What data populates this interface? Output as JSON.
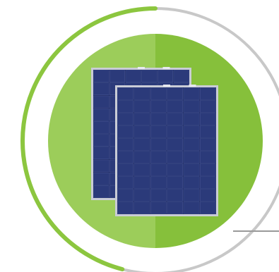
{
  "graphic": {
    "subject": "solar-panels-icon",
    "progress_fraction": 0.5,
    "colors": {
      "ring_track": "#c8c8c8",
      "ring_progress": "#8cc63f",
      "circle_left": "#9ccd5a",
      "circle_right": "#86c03b",
      "panel_cell": "#2b3a7a",
      "panel_cell_dark": "#1f2c66",
      "panel_grid": "#5a6aa8",
      "panel_frame": "#c9ccd6",
      "connector_line": "#999999"
    }
  }
}
